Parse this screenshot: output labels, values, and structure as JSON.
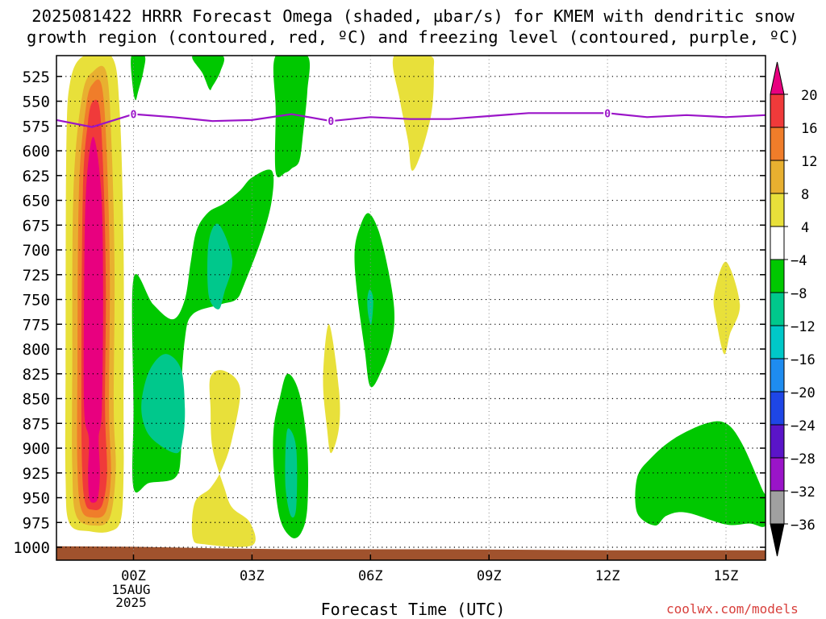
{
  "title": {
    "line1": "2025081422 HRRR Forecast Omega (shaded, µbar/s) for KMEM with dendritic snow",
    "line2": "growth region (contoured, red, ºC) and freezing level (contoured, purple, ºC)"
  },
  "credit": "coolwx.com/models",
  "chart_data": {
    "type": "contour",
    "xlabel": "Forecast Time (UTC)",
    "ylabel": "",
    "x_axis": {
      "unit": "hours UTC (0 = 00Z 15AUG2025)",
      "range": [
        -1.95,
        16.0
      ],
      "ticks": [
        {
          "value": 0,
          "label": "00Z",
          "sub": [
            "15AUG",
            "2025"
          ]
        },
        {
          "value": 3,
          "label": "03Z"
        },
        {
          "value": 6,
          "label": "06Z"
        },
        {
          "value": 9,
          "label": "09Z"
        },
        {
          "value": 12,
          "label": "12Z"
        },
        {
          "value": 15,
          "label": "15Z"
        }
      ]
    },
    "y_axis": {
      "unit": "hPa",
      "inverted": true,
      "range": [
        504,
        1013
      ],
      "ticks": [
        525,
        550,
        575,
        600,
        625,
        650,
        675,
        700,
        725,
        750,
        775,
        800,
        825,
        850,
        875,
        900,
        925,
        950,
        975,
        1000
      ]
    },
    "grid": "dotted",
    "colorbar": {
      "placement": "right",
      "levels": [
        -36,
        -32,
        -28,
        -24,
        -20,
        -16,
        -12,
        -8,
        -4,
        4,
        8,
        12,
        16,
        20
      ],
      "label_levels": [
        20,
        16,
        12,
        8,
        4,
        -4,
        -8,
        -12,
        -16,
        -20,
        -24,
        -28,
        -32,
        -36
      ],
      "colors_top_to_bottom": [
        "#e8007f",
        "#f03a3a",
        "#f07d2a",
        "#e8b030",
        "#e8e03a",
        "#ffffff",
        "#00c800",
        "#00c88c",
        "#00c8c8",
        "#1e8cf0",
        "#1e46e6",
        "#5a14c8",
        "#9a14c8",
        "#a0a0a0",
        "#000000"
      ]
    },
    "freezing_level": {
      "color": "#9a14c8",
      "label": "0",
      "points": [
        [
          -1.95,
          569
        ],
        [
          -1.05,
          576
        ],
        [
          0,
          563
        ],
        [
          1,
          566
        ],
        [
          2,
          570
        ],
        [
          3,
          569
        ],
        [
          4,
          563
        ],
        [
          5,
          570
        ],
        [
          6,
          566
        ],
        [
          7,
          568
        ],
        [
          8,
          568
        ],
        [
          9,
          565
        ],
        [
          10,
          562
        ],
        [
          11,
          562
        ],
        [
          12,
          562
        ],
        [
          13,
          566
        ],
        [
          14,
          564
        ],
        [
          15,
          566
        ],
        [
          16,
          564
        ]
      ],
      "label_positions": [
        [
          0,
          563
        ],
        [
          5,
          570
        ],
        [
          12,
          562
        ]
      ]
    },
    "omega_regions": [
      {
        "name": "col1-yellow",
        "level": 4,
        "color": "#e8e03a",
        "points": [
          [
            -1.25,
            504
          ],
          [
            -0.55,
            505
          ],
          [
            -0.35,
            560
          ],
          [
            -0.25,
            700
          ],
          [
            -0.25,
            860
          ],
          [
            -0.25,
            925
          ],
          [
            -0.32,
            972
          ],
          [
            -0.6,
            984
          ],
          [
            -1.1,
            984
          ],
          [
            -1.62,
            976
          ],
          [
            -1.72,
            930
          ],
          [
            -1.72,
            820
          ],
          [
            -1.7,
            600
          ],
          [
            -1.6,
            530
          ]
        ]
      },
      {
        "name": "col1-gold",
        "level": 8,
        "color": "#e8b030",
        "points": [
          [
            -1.02,
            520
          ],
          [
            -0.68,
            522
          ],
          [
            -0.55,
            600
          ],
          [
            -0.48,
            720
          ],
          [
            -0.5,
            860
          ],
          [
            -0.45,
            922
          ],
          [
            -0.6,
            970
          ],
          [
            -1.0,
            978
          ],
          [
            -1.45,
            968
          ],
          [
            -1.55,
            920
          ],
          [
            -1.55,
            820
          ],
          [
            -1.52,
            640
          ],
          [
            -1.3,
            545
          ]
        ]
      },
      {
        "name": "col1-orange",
        "level": 12,
        "color": "#f07d2a",
        "points": [
          [
            -1.02,
            532
          ],
          [
            -0.8,
            535
          ],
          [
            -0.68,
            600
          ],
          [
            -0.6,
            720
          ],
          [
            -0.62,
            860
          ],
          [
            -0.57,
            925
          ],
          [
            -0.7,
            964
          ],
          [
            -1.02,
            970
          ],
          [
            -1.32,
            962
          ],
          [
            -1.42,
            920
          ],
          [
            -1.42,
            820
          ],
          [
            -1.38,
            640
          ],
          [
            -1.2,
            555
          ]
        ]
      },
      {
        "name": "col1-red",
        "level": 16,
        "color": "#f03a3a",
        "points": [
          [
            -1.02,
            550
          ],
          [
            -0.85,
            560
          ],
          [
            -0.75,
            640
          ],
          [
            -0.7,
            740
          ],
          [
            -0.72,
            860
          ],
          [
            -0.67,
            925
          ],
          [
            -0.8,
            958
          ],
          [
            -1.05,
            962
          ],
          [
            -1.22,
            955
          ],
          [
            -1.3,
            920
          ],
          [
            -1.32,
            820
          ],
          [
            -1.28,
            640
          ],
          [
            -1.15,
            570
          ]
        ]
      },
      {
        "name": "col1-magenta",
        "level": 20,
        "color": "#e8007f",
        "points": [
          [
            -1.02,
            586
          ],
          [
            -0.82,
            640
          ],
          [
            -0.77,
            740
          ],
          [
            -0.8,
            860
          ],
          [
            -0.88,
            890
          ],
          [
            -0.85,
            925
          ],
          [
            -0.9,
            950
          ],
          [
            -1.02,
            955
          ],
          [
            -1.12,
            950
          ],
          [
            -1.15,
            925
          ],
          [
            -1.13,
            890
          ],
          [
            -1.25,
            860
          ],
          [
            -1.25,
            740
          ],
          [
            -1.2,
            640
          ]
        ]
      },
      {
        "name": "green-top-0z",
        "level": -4,
        "color": "#00c800",
        "points": [
          [
            -0.05,
            504
          ],
          [
            0.28,
            504
          ],
          [
            0.25,
            520
          ],
          [
            0.12,
            540
          ],
          [
            0.05,
            549
          ],
          [
            -0.02,
            535
          ]
        ]
      },
      {
        "name": "green-top-1z",
        "level": -4,
        "color": "#00c800",
        "points": [
          [
            1.5,
            504
          ],
          [
            2.25,
            504
          ],
          [
            2.2,
            520
          ],
          [
            2.0,
            535
          ],
          [
            1.92,
            538
          ],
          [
            1.75,
            522
          ]
        ]
      },
      {
        "name": "green-top-4z",
        "level": -4,
        "color": "#00c800",
        "points": [
          [
            3.6,
            504
          ],
          [
            4.4,
            504
          ],
          [
            4.4,
            540
          ],
          [
            4.3,
            580
          ],
          [
            4.2,
            610
          ],
          [
            4.0,
            618
          ],
          [
            3.85,
            622
          ],
          [
            3.6,
            622
          ],
          [
            3.6,
            560
          ]
        ]
      },
      {
        "name": "yellow-top-7z",
        "level": 4,
        "color": "#e8e03a",
        "points": [
          [
            6.6,
            504
          ],
          [
            7.5,
            504
          ],
          [
            7.6,
            520
          ],
          [
            7.55,
            560
          ],
          [
            7.3,
            600
          ],
          [
            7.05,
            620
          ],
          [
            6.95,
            590
          ],
          [
            6.75,
            550
          ]
        ]
      },
      {
        "name": "green-mid-big",
        "level": -4,
        "color": "#00c800",
        "points": [
          [
            0,
            729
          ],
          [
            0.5,
            755
          ],
          [
            1.0,
            770
          ],
          [
            1.3,
            750
          ],
          [
            1.45,
            712
          ],
          [
            1.6,
            680
          ],
          [
            1.9,
            662
          ],
          [
            2.3,
            653
          ],
          [
            2.7,
            640
          ],
          [
            3.0,
            627
          ],
          [
            3.5,
            620
          ],
          [
            3.5,
            650
          ],
          [
            3.25,
            688
          ],
          [
            2.8,
            735
          ],
          [
            2.6,
            750
          ],
          [
            2.2,
            755
          ],
          [
            1.5,
            765
          ],
          [
            1.3,
            790
          ],
          [
            1.2,
            850
          ],
          [
            1.2,
            905
          ],
          [
            1.05,
            930
          ],
          [
            0.4,
            935
          ],
          [
            0,
            940
          ],
          [
            0,
            860
          ]
        ]
      },
      {
        "name": "teal-mid-2z",
        "level": -8,
        "color": "#00c88c",
        "points": [
          [
            1.9,
            693
          ],
          [
            2.15,
            674
          ],
          [
            2.5,
            710
          ],
          [
            2.3,
            743
          ],
          [
            2.15,
            760
          ],
          [
            1.9,
            745
          ]
        ]
      },
      {
        "name": "teal-lower-0z",
        "level": -8,
        "color": "#00c88c",
        "points": [
          [
            0.2,
            855
          ],
          [
            0.4,
            822
          ],
          [
            0.8,
            805
          ],
          [
            1.2,
            820
          ],
          [
            1.3,
            860
          ],
          [
            1.25,
            890
          ],
          [
            1.1,
            905
          ],
          [
            0.6,
            895
          ],
          [
            0.3,
            880
          ]
        ]
      },
      {
        "name": "green-6z",
        "level": -4,
        "color": "#00c800",
        "points": [
          [
            5.95,
            663
          ],
          [
            6.2,
            680
          ],
          [
            6.45,
            720
          ],
          [
            6.6,
            760
          ],
          [
            6.55,
            790
          ],
          [
            6.3,
            820
          ],
          [
            6.0,
            838
          ],
          [
            5.85,
            800
          ],
          [
            5.65,
            740
          ],
          [
            5.6,
            700
          ],
          [
            5.75,
            675
          ]
        ]
      },
      {
        "name": "teal-6z",
        "level": -8,
        "color": "#00c88c",
        "points": [
          [
            5.98,
            740
          ],
          [
            6.07,
            750
          ],
          [
            6.02,
            775
          ],
          [
            5.94,
            765
          ],
          [
            5.92,
            750
          ]
        ]
      },
      {
        "name": "yellow-5z",
        "level": 4,
        "color": "#e8e03a",
        "points": [
          [
            4.95,
            775
          ],
          [
            5.2,
            840
          ],
          [
            5.2,
            880
          ],
          [
            5.0,
            905
          ],
          [
            4.9,
            880
          ],
          [
            4.8,
            830
          ]
        ]
      },
      {
        "name": "yellow-2z-low",
        "level": 4,
        "color": "#e8e03a",
        "points": [
          [
            1.95,
            828
          ],
          [
            2.3,
            822
          ],
          [
            2.7,
            840
          ],
          [
            2.5,
            890
          ],
          [
            2.25,
            920
          ],
          [
            1.95,
            940
          ],
          [
            1.55,
            955
          ],
          [
            1.5,
            990
          ],
          [
            1.8,
            997
          ],
          [
            3.0,
            998
          ],
          [
            2.95,
            975
          ],
          [
            2.5,
            960
          ],
          [
            2.3,
            940
          ],
          [
            2.0,
            900
          ],
          [
            1.95,
            860
          ]
        ]
      },
      {
        "name": "green-4z-low",
        "level": -4,
        "color": "#00c800",
        "points": [
          [
            3.9,
            825
          ],
          [
            4.2,
            845
          ],
          [
            4.4,
            900
          ],
          [
            4.4,
            960
          ],
          [
            4.25,
            985
          ],
          [
            4.0,
            990
          ],
          [
            3.7,
            970
          ],
          [
            3.55,
            920
          ],
          [
            3.55,
            880
          ],
          [
            3.7,
            850
          ]
        ]
      },
      {
        "name": "teal-4z-low",
        "level": -8,
        "color": "#00c88c",
        "points": [
          [
            3.92,
            880
          ],
          [
            4.12,
            900
          ],
          [
            4.12,
            960
          ],
          [
            3.98,
            968
          ],
          [
            3.85,
            940
          ],
          [
            3.85,
            900
          ]
        ]
      },
      {
        "name": "yellow-15z",
        "level": 4,
        "color": "#e8e03a",
        "points": [
          [
            15.0,
            712
          ],
          [
            15.35,
            755
          ],
          [
            15.1,
            785
          ],
          [
            14.95,
            805
          ],
          [
            14.75,
            770
          ],
          [
            14.7,
            745
          ]
        ]
      },
      {
        "name": "green-13z-15z",
        "level": -4,
        "color": "#00c800",
        "points": [
          [
            13.1,
            910
          ],
          [
            13.7,
            890
          ],
          [
            14.5,
            875
          ],
          [
            15.0,
            875
          ],
          [
            15.4,
            895
          ],
          [
            15.9,
            940
          ],
          [
            16.0,
            950
          ],
          [
            16.0,
            978
          ],
          [
            15.6,
            976
          ],
          [
            15.0,
            977
          ],
          [
            14.0,
            965
          ],
          [
            13.5,
            968
          ],
          [
            13.2,
            978
          ],
          [
            12.75,
            965
          ],
          [
            12.75,
            930
          ]
        ]
      }
    ],
    "terrain": {
      "color": "#a0522d",
      "points": [
        [
          -1.95,
          999
        ],
        [
          0,
          999.5
        ],
        [
          2,
          1001
        ],
        [
          4,
          1002
        ],
        [
          6,
          1002
        ],
        [
          8,
          1002
        ],
        [
          10,
          1002.5
        ],
        [
          12,
          1003
        ],
        [
          14,
          1003
        ],
        [
          16,
          1003
        ]
      ]
    }
  }
}
